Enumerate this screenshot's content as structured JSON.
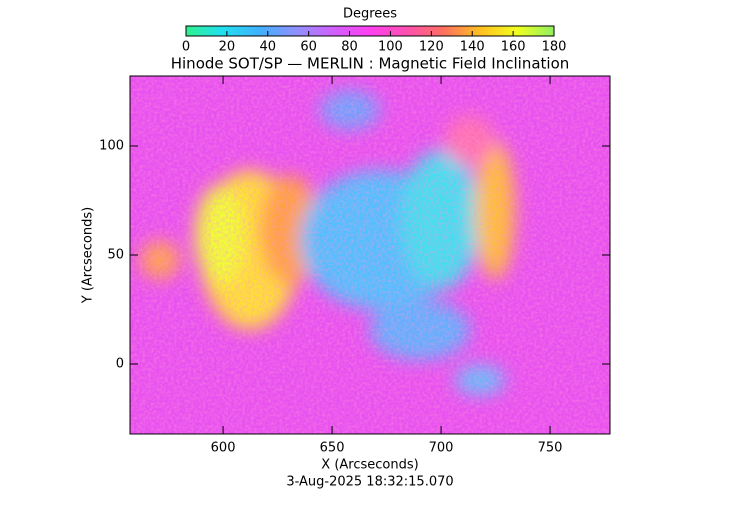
{
  "chart_data": {
    "type": "heatmap",
    "title": "Hinode SOT/SP — MERLIN : Magnetic Field Inclination",
    "subtitle": "3-Aug-2025 18:32:15.070",
    "x_label": "X (Arcseconds)",
    "y_label": "Y (Arcseconds)",
    "xlim": [
      557.3,
      777.5
    ],
    "xticks": [
      600,
      650,
      700,
      750
    ],
    "ylim": [
      -32.1,
      132.1
    ],
    "yticks": [
      0,
      50,
      100
    ],
    "colorbar": {
      "label": "Degrees",
      "clim": [
        0,
        180
      ],
      "ticks": [
        0,
        20,
        40,
        60,
        80,
        100,
        120,
        140,
        160,
        180
      ],
      "colors": [
        "#30f090",
        "#20e0f0",
        "#40b0ff",
        "#9090ff",
        "#d060ff",
        "#ff40f0",
        "#ff50b0",
        "#ff7060",
        "#ffc020",
        "#f0ff20",
        "#90f060"
      ]
    }
  }
}
